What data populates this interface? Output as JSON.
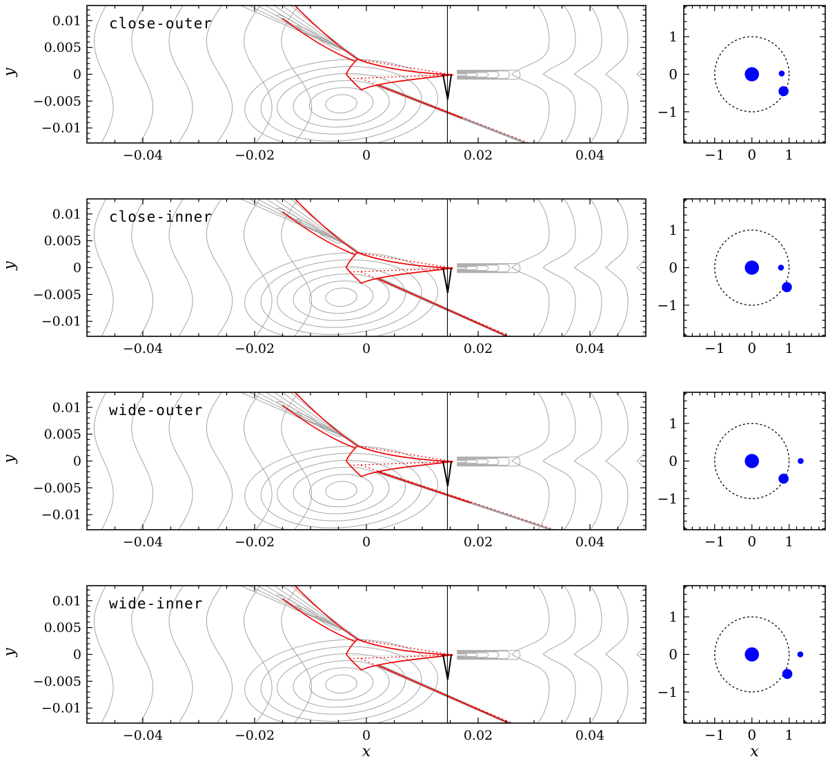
{
  "colors": {
    "contour": "#a3a3a3",
    "caustic": "#ee0000",
    "trajectory": "#000000",
    "lens": "#0000ff",
    "frame": "#000000",
    "background": "#ffffff"
  },
  "chart_data": {
    "type": "contour",
    "description": "Four triple-lens microlensing solutions: magnification contour maps (grey) with caustics (red) and the source trajectory (black vertical line); right insets show the lens geometry in Einstein-radius units with the dotted Einstein ring.",
    "main_axis": {
      "xlabel": "x",
      "ylabel": "y",
      "xlim": [
        -0.05,
        0.05
      ],
      "ylim": [
        -0.0128,
        0.0128
      ],
      "xticks": [
        -0.04,
        -0.02,
        0,
        0.02,
        0.04
      ],
      "xtick_labels": [
        "−0.04",
        "−0.02",
        "0",
        "0.02",
        "0.04"
      ],
      "yticks": [
        0.01,
        0.005,
        0,
        -0.005,
        -0.01
      ],
      "ytick_labels": [
        "0.01",
        "0.005",
        "0",
        "−0.005",
        "−0.01"
      ],
      "x_minor_step": 0.005,
      "y_minor_step": 0.001
    },
    "inset_axis": {
      "xlabel": "x",
      "xlim": [
        -1.83,
        1.97
      ],
      "ylim": [
        -1.83,
        1.83
      ],
      "ticks": [
        -1,
        0,
        1
      ],
      "tick_labels": [
        "−1",
        "0",
        "1"
      ],
      "minor_step": 0.2,
      "einstein_ring_radius": 1
    },
    "trajectory_x": 0.0145,
    "central_caustic": {
      "upper_left_cusp": [
        -0.0016,
        0.0028
      ],
      "left_cusp": [
        -0.0036,
        0.0
      ],
      "lower_cusp": [
        -0.0009,
        -0.0029
      ],
      "right_cusp_tip": [
        0.0155,
        -0.0001
      ]
    },
    "panels": [
      {
        "label": "close-outer",
        "red_diagonal": {
          "from": [
            0.002,
            -0.002
          ],
          "to": [
            0.0172,
            -0.0082
          ]
        },
        "bodies": [
          {
            "name": "primary",
            "x": 0,
            "y": 0,
            "r": 0.19
          },
          {
            "name": "companion-1",
            "x": 0.8,
            "y": 0.02,
            "r": 0.08
          },
          {
            "name": "companion-2",
            "x": 0.85,
            "y": -0.45,
            "r": 0.135
          }
        ]
      },
      {
        "label": "close-inner",
        "red_diagonal": {
          "from": [
            0.002,
            -0.002
          ],
          "to": [
            0.0252,
            -0.0128
          ]
        },
        "bodies": [
          {
            "name": "primary",
            "x": 0,
            "y": 0,
            "r": 0.19
          },
          {
            "name": "companion-1",
            "x": 0.78,
            "y": 0.0,
            "r": 0.08
          },
          {
            "name": "companion-2",
            "x": 0.94,
            "y": -0.52,
            "r": 0.135
          }
        ]
      },
      {
        "label": "wide-outer",
        "red_diagonal": {
          "from": [
            0.002,
            -0.002
          ],
          "to": [
            0.0187,
            -0.0078
          ]
        },
        "bodies": [
          {
            "name": "primary",
            "x": 0,
            "y": 0,
            "r": 0.19
          },
          {
            "name": "companion-1",
            "x": 1.31,
            "y": 0.0,
            "r": 0.08
          },
          {
            "name": "companion-2",
            "x": 0.85,
            "y": -0.47,
            "r": 0.135
          }
        ]
      },
      {
        "label": "wide-inner",
        "red_diagonal": {
          "from": [
            0.002,
            -0.002
          ],
          "to": [
            0.0255,
            -0.0128
          ]
        },
        "bodies": [
          {
            "name": "primary",
            "x": 0,
            "y": 0,
            "r": 0.19
          },
          {
            "name": "companion-1",
            "x": 1.3,
            "y": 0.0,
            "r": 0.08
          },
          {
            "name": "companion-2",
            "x": 0.95,
            "y": -0.52,
            "r": 0.135
          }
        ]
      }
    ]
  }
}
